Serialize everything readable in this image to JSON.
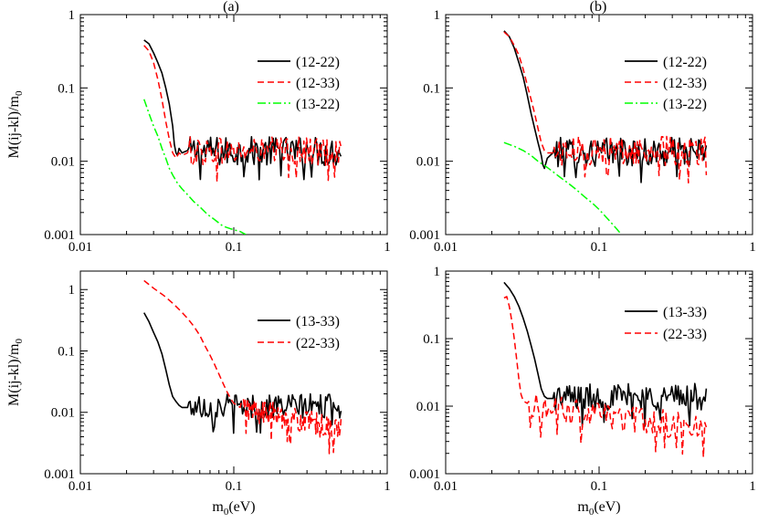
{
  "chart_data": [
    {
      "id": "a-top",
      "type": "line",
      "title": "(a)",
      "ylabel": "M(ij-kl)/m_0",
      "xlabel": "",
      "xscale": "log",
      "yscale": "log",
      "xlim": [
        0.01,
        1
      ],
      "ylim": [
        0.001,
        1
      ],
      "xtick_labels": [
        "0.01",
        "0.1",
        "1"
      ],
      "ytick_labels": [
        "0.001",
        "0.01",
        "0.1",
        "1"
      ],
      "legend_position": "top-right",
      "series": [
        {
          "name": "(12-22)",
          "color": "#000000",
          "style": "solid",
          "plateau": 0.0135,
          "x": [
            0.026,
            0.028,
            0.03,
            0.032,
            0.034,
            0.036,
            0.038,
            0.04,
            0.041,
            0.042,
            0.043,
            0.044,
            0.046,
            0.05
          ],
          "y": [
            0.45,
            0.4,
            0.3,
            0.22,
            0.16,
            0.1,
            0.06,
            0.03,
            0.017,
            0.013,
            0.012,
            0.015,
            0.013,
            0.014
          ]
        },
        {
          "name": "(12-33)",
          "color": "#ff0000",
          "style": "dashed",
          "plateau": 0.0135,
          "x": [
            0.026,
            0.028,
            0.03,
            0.032,
            0.034,
            0.036,
            0.038,
            0.04,
            0.042,
            0.044,
            0.046,
            0.05
          ],
          "y": [
            0.38,
            0.32,
            0.22,
            0.13,
            0.07,
            0.035,
            0.02,
            0.013,
            0.011,
            0.013,
            0.012,
            0.013
          ]
        },
        {
          "name": "(13-22)",
          "color": "#00ff00",
          "style": "dashdot",
          "x": [
            0.026,
            0.028,
            0.03,
            0.032,
            0.034,
            0.036,
            0.038,
            0.04,
            0.043,
            0.046,
            0.05,
            0.055,
            0.06,
            0.067,
            0.075,
            0.085,
            0.095,
            0.11,
            0.12
          ],
          "y": [
            0.07,
            0.045,
            0.03,
            0.022,
            0.015,
            0.011,
            0.008,
            0.0065,
            0.005,
            0.0042,
            0.0035,
            0.0028,
            0.0024,
            0.0019,
            0.0016,
            0.0013,
            0.0012,
            0.0011,
            0.001
          ]
        }
      ]
    },
    {
      "id": "b-top",
      "type": "line",
      "title": "(b)",
      "ylabel": "",
      "xlabel": "",
      "xscale": "log",
      "yscale": "log",
      "xlim": [
        0.01,
        1
      ],
      "ylim": [
        0.001,
        1
      ],
      "xtick_labels": [
        "0.01",
        "0.1",
        "1"
      ],
      "ytick_labels": [
        "0.001",
        "0.01",
        "0.1",
        "1"
      ],
      "legend_position": "top-right",
      "series": [
        {
          "name": "(12-22)",
          "color": "#000000",
          "style": "solid",
          "plateau": 0.013,
          "x": [
            0.024,
            0.026,
            0.028,
            0.03,
            0.032,
            0.034,
            0.036,
            0.038,
            0.04,
            0.042,
            0.043,
            0.044,
            0.046,
            0.05
          ],
          "y": [
            0.6,
            0.5,
            0.35,
            0.22,
            0.14,
            0.08,
            0.045,
            0.028,
            0.018,
            0.012,
            0.009,
            0.008,
            0.011,
            0.013
          ]
        },
        {
          "name": "(12-33)",
          "color": "#ff0000",
          "style": "dashed",
          "plateau": 0.0135,
          "x": [
            0.024,
            0.026,
            0.028,
            0.03,
            0.032,
            0.034,
            0.036,
            0.038,
            0.04,
            0.042,
            0.044,
            0.046,
            0.05
          ],
          "y": [
            0.58,
            0.5,
            0.38,
            0.28,
            0.18,
            0.11,
            0.07,
            0.045,
            0.028,
            0.018,
            0.014,
            0.013,
            0.013
          ]
        },
        {
          "name": "(13-22)",
          "color": "#00ff00",
          "style": "dashdot",
          "x": [
            0.024,
            0.028,
            0.032,
            0.036,
            0.04,
            0.045,
            0.05,
            0.056,
            0.063,
            0.07,
            0.08,
            0.09,
            0.1,
            0.115,
            0.13,
            0.14
          ],
          "y": [
            0.018,
            0.016,
            0.014,
            0.012,
            0.01,
            0.0085,
            0.0072,
            0.006,
            0.005,
            0.0042,
            0.0033,
            0.0027,
            0.0022,
            0.0016,
            0.0012,
            0.001
          ]
        }
      ]
    },
    {
      "id": "a-bottom",
      "type": "line",
      "title": "",
      "ylabel": "M(ij-kl)/m_0",
      "xlabel": "m_0(eV)",
      "xscale": "log",
      "yscale": "log",
      "xlim": [
        0.01,
        1
      ],
      "ylim": [
        0.001,
        2
      ],
      "xtick_labels": [
        "0.01",
        "0.1",
        "1"
      ],
      "ytick_labels": [
        "0.001",
        "0.01",
        "0.1",
        "1"
      ],
      "legend_position": "center-right",
      "series": [
        {
          "name": "(13-33)",
          "color": "#000000",
          "style": "solid",
          "plateau": 0.0125,
          "x": [
            0.026,
            0.028,
            0.03,
            0.032,
            0.034,
            0.036,
            0.038,
            0.04,
            0.042,
            0.044,
            0.046,
            0.05
          ],
          "y": [
            0.42,
            0.3,
            0.2,
            0.14,
            0.09,
            0.05,
            0.028,
            0.018,
            0.015,
            0.013,
            0.012,
            0.012
          ]
        },
        {
          "name": "(22-33)",
          "color": "#ff0000",
          "style": "dashed",
          "plateau_start": 0.012,
          "plateau_end": 0.005,
          "x": [
            0.026,
            0.03,
            0.035,
            0.04,
            0.045,
            0.05,
            0.055,
            0.06,
            0.065,
            0.07,
            0.075,
            0.08,
            0.085,
            0.09,
            0.095,
            0.1,
            0.105,
            0.11
          ],
          "y": [
            1.4,
            1.05,
            0.8,
            0.6,
            0.45,
            0.34,
            0.25,
            0.18,
            0.12,
            0.085,
            0.06,
            0.042,
            0.03,
            0.022,
            0.017,
            0.014,
            0.013,
            0.012
          ]
        }
      ]
    },
    {
      "id": "b-bottom",
      "type": "line",
      "title": "",
      "ylabel": "",
      "xlabel": "m_0(eV)",
      "xscale": "log",
      "yscale": "log",
      "xlim": [
        0.01,
        1
      ],
      "ylim": [
        0.001,
        1
      ],
      "xtick_labels": [
        "0.01",
        "0.1",
        "1"
      ],
      "ytick_labels": [
        "0.001",
        "0.01",
        "0.1",
        "1"
      ],
      "legend_position": "top-right",
      "series": [
        {
          "name": "(13-33)",
          "color": "#000000",
          "style": "solid",
          "plateau": 0.0135,
          "x": [
            0.024,
            0.026,
            0.028,
            0.03,
            0.032,
            0.034,
            0.036,
            0.038,
            0.04,
            0.042,
            0.044,
            0.046,
            0.05
          ],
          "y": [
            0.68,
            0.55,
            0.42,
            0.3,
            0.2,
            0.13,
            0.08,
            0.05,
            0.03,
            0.018,
            0.014,
            0.013,
            0.013
          ]
        },
        {
          "name": "(22-33)",
          "color": "#ff0000",
          "style": "dashed",
          "plateau_start": 0.01,
          "plateau_end": 0.0045,
          "x": [
            0.024,
            0.025,
            0.026,
            0.027,
            0.028,
            0.029,
            0.03,
            0.031,
            0.032,
            0.034
          ],
          "y": [
            0.4,
            0.42,
            0.3,
            0.18,
            0.1,
            0.05,
            0.025,
            0.015,
            0.012,
            0.011
          ]
        }
      ]
    }
  ]
}
